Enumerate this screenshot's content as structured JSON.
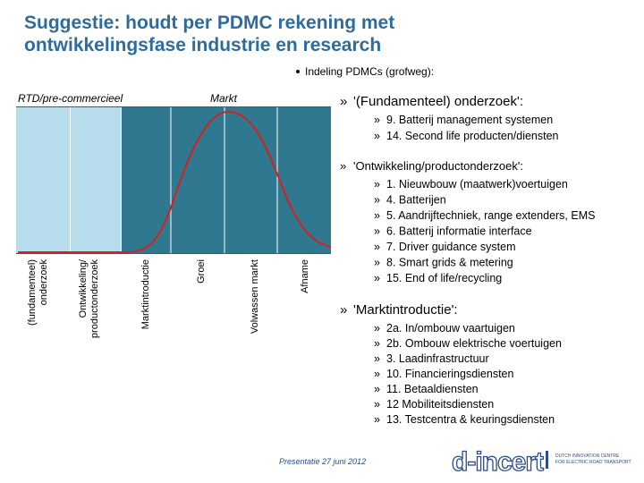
{
  "title": [
    "Suggestie: houdt per PDMC rekening met",
    "ontwikkelingsfase industrie en research"
  ],
  "intro": "Indeling PDMCs (grofweg):",
  "diagram": {
    "headers": [
      "RTD/pre-commercieel",
      "Markt"
    ],
    "phases": [
      [
        "(fundamenteel)",
        "onderzoek"
      ],
      [
        "Ontwikkeling/",
        "productonderzoek"
      ],
      [
        "Marktintroductie"
      ],
      [
        "Groei"
      ],
      [
        "Volwassen markt"
      ],
      [
        "Afname"
      ]
    ]
  },
  "groups": [
    {
      "heading": "'(Fundamenteel) onderzoek':",
      "items": [
        "9. Batterij management systemen",
        "14. Second life producten/diensten"
      ]
    },
    {
      "heading": "'Ontwikkeling/productonderzoek':",
      "items": [
        "1. Nieuwbouw (maatwerk)voertuigen",
        "4. Batterijen",
        "5. Aandrijftechniek, range extenders, EMS",
        "6. Batterij informatie interface",
        "7. Driver guidance system",
        "8. Smart grids & metering",
        "15. End of life/recycling"
      ]
    },
    {
      "heading": "'Marktintroductie':",
      "items": [
        "2a. In/ombouw vaartuigen",
        "2b. Ombouw elektrische voertuigen",
        "3. Laadinfrastructuur",
        "10. Financieringsdiensten",
        "11. Betaaldiensten",
        "12 Mobiliteitsdiensten",
        "13. Testcentra & keuringsdiensten"
      ]
    }
  ],
  "footer": {
    "date": "Presentatie 27 juni 2012",
    "logo": "d-incert",
    "tagline": [
      "DUTCH INNOVATION CENTRE",
      "FOR ELECTRIC ROAD TRANSPORT"
    ]
  }
}
